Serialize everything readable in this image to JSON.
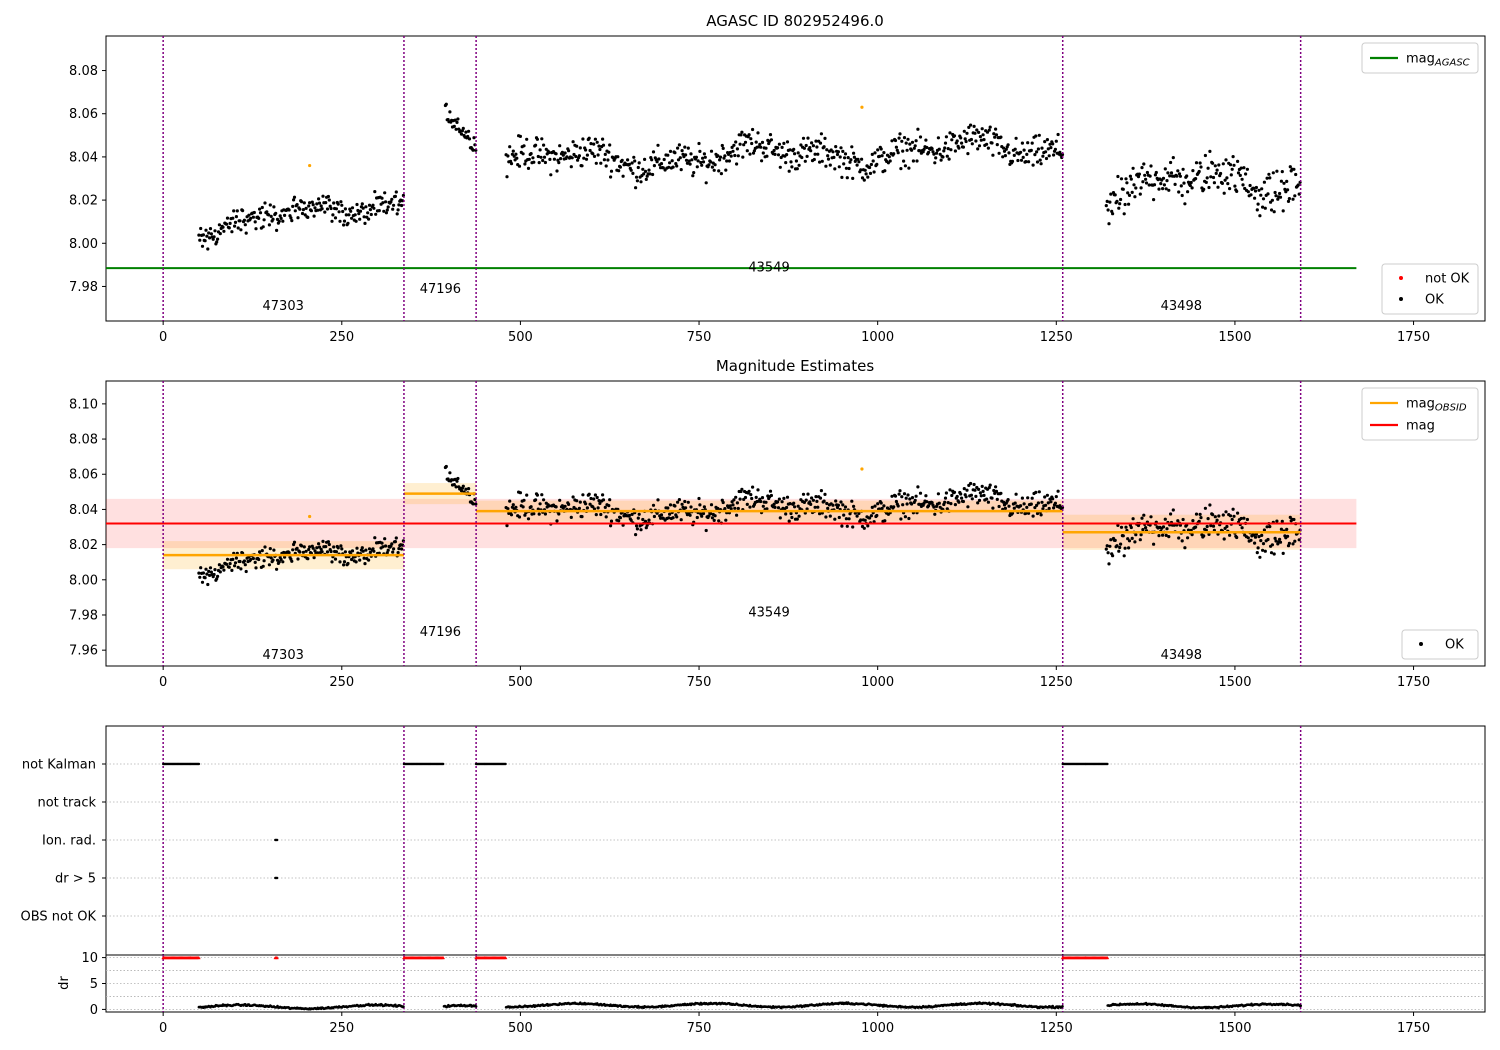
{
  "chart_data": [
    {
      "type": "scatter",
      "title": "AGASC ID 802952496.0",
      "xlabel": "",
      "ylabel": "",
      "xlim": [
        -80,
        1850
      ],
      "ylim": [
        7.964,
        8.096
      ],
      "xticks": [
        0,
        250,
        500,
        750,
        1000,
        1250,
        1500,
        1750
      ],
      "yticks": [
        7.98,
        8.0,
        8.02,
        8.04,
        8.06,
        8.08
      ],
      "ytick_labels": [
        "7.98",
        "8.00",
        "8.02",
        "8.04",
        "8.06",
        "8.08"
      ],
      "vlines": [
        0,
        337,
        438,
        1259,
        1592
      ],
      "obsids": [
        {
          "label": "47303",
          "x": 168,
          "y": 7.969
        },
        {
          "label": "47196",
          "x": 388,
          "y": 7.977
        },
        {
          "label": "43549",
          "x": 848,
          "y": 7.987
        },
        {
          "label": "43498",
          "x": 1425,
          "y": 7.969
        }
      ],
      "hline": {
        "name": "mag_AGASC",
        "y": 7.9885,
        "x_range": [
          -80,
          1670
        ],
        "color": "#008000"
      },
      "obs_segments": [
        {
          "start": 50,
          "end": 337,
          "start_level": 8.006,
          "end_level": 8.02,
          "spread": 0.005
        },
        {
          "start": 395,
          "end": 438,
          "start_level": 8.057,
          "end_level": 8.045,
          "spread": 0.004
        },
        {
          "start": 480,
          "end": 1259,
          "start_level": 8.038,
          "end_level": 8.044,
          "spread": 0.006
        },
        {
          "start": 1320,
          "end": 1592,
          "start_level": 8.025,
          "end_level": 8.03,
          "spread": 0.008
        }
      ],
      "not_ok_points": [
        [
          205,
          8.036
        ],
        [
          978,
          8.063
        ]
      ],
      "legend_upper": {
        "position": "top-right",
        "items": [
          {
            "label": "mag",
            "subscript": "AGASC",
            "color": "#008000"
          }
        ]
      },
      "legend_lower": {
        "position": "bottom-right",
        "items": [
          {
            "label": "not OK",
            "color": "#ff0000"
          },
          {
            "label": "OK",
            "color": "#000000"
          }
        ]
      }
    },
    {
      "type": "scatter",
      "title": "Magnitude Estimates",
      "xlabel": "",
      "ylabel": "",
      "xlim": [
        -80,
        1850
      ],
      "ylim": [
        7.951,
        8.113
      ],
      "xticks": [
        0,
        250,
        500,
        750,
        1000,
        1250,
        1500,
        1750
      ],
      "yticks": [
        7.96,
        7.98,
        8.0,
        8.02,
        8.04,
        8.06,
        8.08,
        8.1
      ],
      "ytick_labels": [
        "7.96",
        "7.98",
        "8.00",
        "8.02",
        "8.04",
        "8.06",
        "8.08",
        "8.10"
      ],
      "vlines": [
        0,
        337,
        438,
        1259,
        1592
      ],
      "obsids": [
        {
          "label": "47303",
          "x": 168,
          "y": 7.955
        },
        {
          "label": "47196",
          "x": 388,
          "y": 7.968
        },
        {
          "label": "43549",
          "x": 848,
          "y": 7.979
        },
        {
          "label": "43498",
          "x": 1425,
          "y": 7.955
        }
      ],
      "mag": {
        "name": "mag",
        "y": 8.032,
        "band": [
          8.018,
          8.046
        ],
        "x_range": [
          -80,
          1670
        ],
        "color": "#ff0000"
      },
      "mag_obsid": [
        {
          "start": 0,
          "end": 337,
          "y": 8.014,
          "band": [
            8.006,
            8.022
          ]
        },
        {
          "start": 337,
          "end": 438,
          "y": 8.049,
          "band": [
            8.043,
            8.055
          ]
        },
        {
          "start": 438,
          "end": 1259,
          "y": 8.039,
          "band": [
            8.033,
            8.045
          ]
        },
        {
          "start": 1259,
          "end": 1592,
          "y": 8.027,
          "band": [
            8.017,
            8.037
          ]
        }
      ],
      "obs_segments": [
        {
          "start": 50,
          "end": 337,
          "start_level": 8.006,
          "end_level": 8.02,
          "spread": 0.005
        },
        {
          "start": 395,
          "end": 438,
          "start_level": 8.057,
          "end_level": 8.045,
          "spread": 0.004
        },
        {
          "start": 480,
          "end": 1259,
          "start_level": 8.038,
          "end_level": 8.044,
          "spread": 0.006
        },
        {
          "start": 1320,
          "end": 1592,
          "start_level": 8.025,
          "end_level": 8.03,
          "spread": 0.008
        }
      ],
      "not_ok_points": [
        [
          205,
          8.036
        ],
        [
          978,
          8.063
        ]
      ],
      "legend_upper": {
        "position": "top-right",
        "items": [
          {
            "label": "mag",
            "subscript": "OBSID",
            "color": "#ffa500"
          },
          {
            "label": "mag",
            "color": "#ff0000"
          }
        ]
      },
      "legend_lower": {
        "position": "bottom-right",
        "items": [
          {
            "label": "OK",
            "color": "#000000"
          }
        ]
      }
    },
    {
      "type": "scatter",
      "title": "",
      "xlabel": "",
      "ylabel": "",
      "xlim": [
        -80,
        1850
      ],
      "categories": [
        "not Kalman",
        "not track",
        "Ion. rad.",
        "dr > 5",
        "OBS not OK"
      ],
      "vlines": [
        0,
        337,
        438,
        1259,
        1592
      ],
      "flag_ranges": [
        {
          "category": "not Kalman",
          "ranges": [
            [
              0,
              50
            ],
            [
              337,
              393
            ],
            [
              438,
              480
            ],
            [
              1259,
              1322
            ]
          ]
        },
        {
          "category": "not track",
          "ranges": []
        },
        {
          "category": "Ion. rad.",
          "ranges": [
            [
              157,
              160
            ]
          ]
        },
        {
          "category": "dr > 5",
          "ranges": [
            [
              157,
              160
            ]
          ]
        },
        {
          "category": "OBS not OK",
          "ranges": []
        }
      ]
    },
    {
      "type": "scatter",
      "title": "",
      "xlabel": "",
      "ylabel": "dr",
      "xlim": [
        -80,
        1850
      ],
      "ylim": [
        -0.5,
        10.5
      ],
      "xticks": [
        0,
        250,
        500,
        750,
        1000,
        1250,
        1500,
        1750
      ],
      "yticks": [
        0,
        5,
        10
      ],
      "ytick_labels": [
        "0",
        "5",
        "10"
      ],
      "vlines": [
        0,
        337,
        438,
        1259,
        1592
      ],
      "capped_value": 10,
      "capped_ranges": [
        [
          0,
          50
        ],
        [
          157,
          160
        ],
        [
          337,
          393
        ],
        [
          438,
          480
        ],
        [
          1259,
          1322
        ]
      ],
      "dr_segments": [
        {
          "start": 50,
          "end": 337,
          "level": 0.5
        },
        {
          "start": 393,
          "end": 438,
          "level": 0.4
        },
        {
          "start": 480,
          "end": 1259,
          "level": 0.8
        },
        {
          "start": 1322,
          "end": 1592,
          "level": 0.7
        }
      ]
    }
  ]
}
